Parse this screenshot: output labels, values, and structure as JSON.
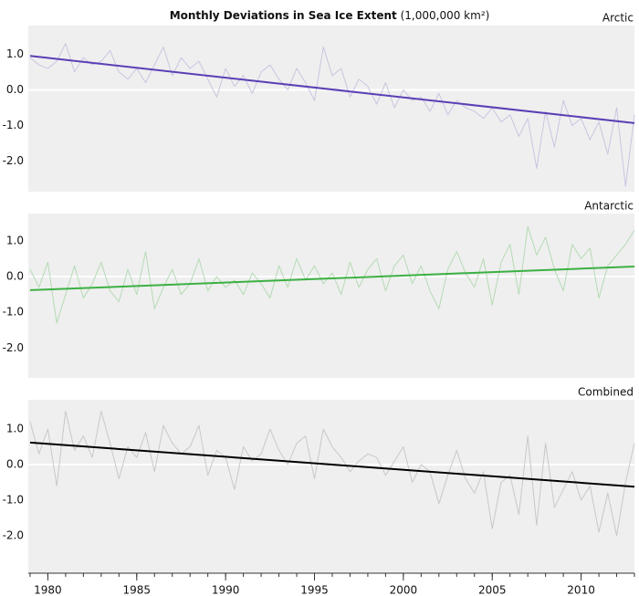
{
  "title": "Monthly Deviations in Sea Ice Extent",
  "subtitle": "(1,000,000 km²)",
  "chart_data": [
    {
      "type": "line",
      "label": "Arctic",
      "x": [
        1979,
        1979.5,
        1980,
        1980.5,
        1981,
        1981.5,
        1982,
        1982.5,
        1983,
        1983.5,
        1984,
        1984.5,
        1985,
        1985.5,
        1986,
        1986.5,
        1987,
        1987.5,
        1988,
        1988.5,
        1989,
        1989.5,
        1990,
        1990.5,
        1991,
        1991.5,
        1992,
        1992.5,
        1993,
        1993.5,
        1994,
        1994.5,
        1995,
        1995.5,
        1996,
        1996.5,
        1997,
        1997.5,
        1998,
        1998.5,
        1999,
        1999.5,
        2000,
        2000.5,
        2001,
        2001.5,
        2002,
        2002.5,
        2003,
        2003.5,
        2004,
        2004.5,
        2005,
        2005.5,
        2006,
        2006.5,
        2007,
        2007.5,
        2008,
        2008.5,
        2009,
        2009.5,
        2010,
        2010.5,
        2011,
        2011.5,
        2012,
        2012.5,
        2013
      ],
      "series": [
        {
          "color": "#c9c5e0",
          "values": [
            0.9,
            0.7,
            0.6,
            0.8,
            1.3,
            0.5,
            0.9,
            0.7,
            0.8,
            1.1,
            0.5,
            0.3,
            0.6,
            0.2,
            0.7,
            1.2,
            0.4,
            0.9,
            0.6,
            0.8,
            0.3,
            -0.2,
            0.6,
            0.1,
            0.4,
            -0.1,
            0.5,
            0.7,
            0.3,
            0.0,
            0.6,
            0.2,
            -0.3,
            1.2,
            0.4,
            0.6,
            -0.2,
            0.3,
            0.1,
            -0.4,
            0.2,
            -0.5,
            0.0,
            -0.3,
            -0.2,
            -0.6,
            -0.1,
            -0.7,
            -0.3,
            -0.5,
            -0.6,
            -0.8,
            -0.5,
            -0.9,
            -0.7,
            -1.3,
            -0.8,
            -2.2,
            -0.6,
            -1.6,
            -0.3,
            -1.0,
            -0.8,
            -1.4,
            -0.9,
            -1.8,
            -0.5,
            -2.7,
            -0.7
          ]
        }
      ],
      "trend": {
        "x": [
          1979,
          2013
        ],
        "values": [
          0.95,
          -0.93
        ],
        "color": "#5a3fb5"
      },
      "xlim": [
        1978.9,
        2013.0
      ],
      "ylim": [
        -2.85,
        1.8
      ],
      "yticks": [
        {
          "value": 1,
          "label": "1.0"
        },
        {
          "value": 0,
          "label": "0.0"
        },
        {
          "value": -1,
          "label": "-1.0"
        },
        {
          "value": -2,
          "label": "-2.0"
        }
      ]
    },
    {
      "type": "line",
      "label": "Antarctic",
      "x": [
        1979,
        1979.5,
        1980,
        1980.5,
        1981,
        1981.5,
        1982,
        1982.5,
        1983,
        1983.5,
        1984,
        1984.5,
        1985,
        1985.5,
        1986,
        1986.5,
        1987,
        1987.5,
        1988,
        1988.5,
        1989,
        1989.5,
        1990,
        1990.5,
        1991,
        1991.5,
        1992,
        1992.5,
        1993,
        1993.5,
        1994,
        1994.5,
        1995,
        1995.5,
        1996,
        1996.5,
        1997,
        1997.5,
        1998,
        1998.5,
        1999,
        1999.5,
        2000,
        2000.5,
        2001,
        2001.5,
        2002,
        2002.5,
        2003,
        2003.5,
        2004,
        2004.5,
        2005,
        2005.5,
        2006,
        2006.5,
        2007,
        2007.5,
        2008,
        2008.5,
        2009,
        2009.5,
        2010,
        2010.5,
        2011,
        2011.5,
        2012,
        2012.5,
        2013
      ],
      "series": [
        {
          "color": "#b5dab5",
          "values": [
            0.2,
            -0.3,
            0.4,
            -1.3,
            -0.5,
            0.3,
            -0.6,
            -0.2,
            0.4,
            -0.4,
            -0.7,
            0.2,
            -0.5,
            0.7,
            -0.9,
            -0.3,
            0.2,
            -0.5,
            -0.2,
            0.5,
            -0.4,
            0.0,
            -0.3,
            -0.1,
            -0.5,
            0.1,
            -0.2,
            -0.6,
            0.3,
            -0.3,
            0.5,
            -0.1,
            0.3,
            -0.2,
            0.1,
            -0.5,
            0.4,
            -0.3,
            0.2,
            0.5,
            -0.4,
            0.3,
            0.6,
            -0.2,
            0.3,
            -0.4,
            -0.9,
            0.2,
            0.7,
            0.1,
            -0.3,
            0.5,
            -0.8,
            0.4,
            0.9,
            -0.5,
            1.4,
            0.6,
            1.1,
            0.2,
            -0.4,
            0.9,
            0.5,
            0.8,
            -0.6,
            0.3,
            0.6,
            0.9,
            1.3
          ]
        }
      ],
      "trend": {
        "x": [
          1979,
          2013
        ],
        "values": [
          -0.38,
          0.28
        ],
        "color": "#3cb043"
      },
      "xlim": [
        1978.9,
        2013.0
      ],
      "ylim": [
        -2.83,
        1.76
      ],
      "yticks": [
        {
          "value": 1,
          "label": "1.0"
        },
        {
          "value": 0,
          "label": "0.0"
        },
        {
          "value": -1,
          "label": "-1.0"
        },
        {
          "value": -2,
          "label": "-2.0"
        }
      ]
    },
    {
      "type": "line",
      "label": "Combined",
      "x": [
        1979,
        1979.5,
        1980,
        1980.5,
        1981,
        1981.5,
        1982,
        1982.5,
        1983,
        1983.5,
        1984,
        1984.5,
        1985,
        1985.5,
        1986,
        1986.5,
        1987,
        1987.5,
        1988,
        1988.5,
        1989,
        1989.5,
        1990,
        1990.5,
        1991,
        1991.5,
        1992,
        1992.5,
        1993,
        1993.5,
        1994,
        1994.5,
        1995,
        1995.5,
        1996,
        1996.5,
        1997,
        1997.5,
        1998,
        1998.5,
        1999,
        1999.5,
        2000,
        2000.5,
        2001,
        2001.5,
        2002,
        2002.5,
        2003,
        2003.5,
        2004,
        2004.5,
        2005,
        2005.5,
        2006,
        2006.5,
        2007,
        2007.5,
        2008,
        2008.5,
        2009,
        2009.5,
        2010,
        2010.5,
        2011,
        2011.5,
        2012,
        2012.5,
        2013
      ],
      "series": [
        {
          "color": "#c8c8c8",
          "values": [
            1.2,
            0.3,
            1.0,
            -0.6,
            1.5,
            0.4,
            0.8,
            0.2,
            1.5,
            0.6,
            -0.4,
            0.5,
            0.2,
            0.9,
            -0.2,
            1.1,
            0.6,
            0.3,
            0.5,
            1.1,
            -0.3,
            0.4,
            0.2,
            -0.7,
            0.5,
            0.1,
            0.3,
            1.0,
            0.4,
            0.0,
            0.6,
            0.8,
            -0.4,
            1.0,
            0.5,
            0.2,
            -0.2,
            0.1,
            0.3,
            0.2,
            -0.3,
            0.1,
            0.5,
            -0.5,
            0.0,
            -0.2,
            -1.1,
            -0.3,
            0.4,
            -0.4,
            -0.8,
            -0.2,
            -1.8,
            -0.5,
            -0.3,
            -1.4,
            0.8,
            -1.7,
            0.6,
            -1.2,
            -0.7,
            -0.2,
            -1.0,
            -0.6,
            -1.9,
            -0.8,
            -2.0,
            -0.5,
            0.6
          ]
        }
      ],
      "trend": {
        "x": [
          1979,
          2013
        ],
        "values": [
          0.62,
          -0.62
        ],
        "color": "#000000"
      },
      "xlim": [
        1978.9,
        2013.0
      ],
      "ylim": [
        -3.05,
        1.82
      ],
      "yticks": [
        {
          "value": 1,
          "label": "1.0"
        },
        {
          "value": 0,
          "label": "0.0"
        },
        {
          "value": -1,
          "label": "-1.0"
        },
        {
          "value": -2,
          "label": "-2.0"
        }
      ],
      "xticks": [
        1980,
        1985,
        1990,
        1995,
        2000,
        2005,
        2010
      ]
    }
  ]
}
